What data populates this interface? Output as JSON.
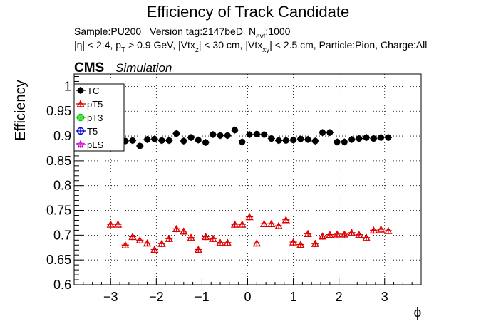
{
  "title": "Efficiency of Track Candidate",
  "header": {
    "sample_label": "Sample:PU200",
    "version_label": "Version tag:2147beD",
    "n_label": "N",
    "n_sub": "evt",
    "n_value": ":1000",
    "cuts": {
      "eta": "|η| < 2.4, p",
      "pt_sub": "T",
      "pt_cut": " > 0.9 GeV, |Vtx",
      "z_sub": "z",
      "z_cut": "| < 30 cm, |Vtx",
      "xy_sub": "xy",
      "xy_cut": "| < 2.5 cm, Particle:Pion, Charge:All"
    }
  },
  "cms_label": "CMS",
  "simulation_label": "Simulation",
  "chart_data": {
    "type": "scatter",
    "xlabel": "ϕ",
    "ylabel": "Efficiency",
    "xlim": [
      -3.8,
      3.8
    ],
    "ylim": [
      0.6,
      1.025
    ],
    "xticks": [
      -3,
      -2,
      -1,
      0,
      1,
      2,
      3
    ],
    "xtick_labels": [
      "−3",
      "−2",
      "−1",
      "0",
      "1",
      "2",
      "3"
    ],
    "yticks": [
      0.6,
      0.65,
      0.7,
      0.75,
      0.8,
      0.85,
      0.9,
      0.95,
      1.0
    ],
    "ytick_labels": [
      "0.6",
      "0.65",
      "0.7",
      "0.75",
      "0.8",
      "0.85",
      "0.9",
      "0.95",
      "1"
    ],
    "grid": true,
    "legend_position": "top-left",
    "x": [
      -3.0,
      -2.84,
      -2.68,
      -2.52,
      -2.36,
      -2.2,
      -2.04,
      -1.88,
      -1.72,
      -1.56,
      -1.4,
      -1.24,
      -1.08,
      -0.92,
      -0.76,
      -0.6,
      -0.44,
      -0.28,
      -0.12,
      0.04,
      0.2,
      0.36,
      0.52,
      0.68,
      0.84,
      1.0,
      1.16,
      1.32,
      1.48,
      1.64,
      1.8,
      1.96,
      2.12,
      2.28,
      2.44,
      2.6,
      2.76,
      2.92,
      3.08
    ],
    "series": [
      {
        "name": "TC",
        "color": "#000000",
        "marker": "filled-circle",
        "values": [
          0.895,
          0.89,
          0.89,
          0.891,
          0.88,
          0.893,
          0.894,
          0.891,
          0.891,
          0.905,
          0.89,
          0.897,
          0.892,
          0.887,
          0.903,
          0.901,
          0.901,
          0.912,
          0.888,
          0.903,
          0.904,
          0.903,
          0.895,
          0.891,
          0.891,
          0.892,
          0.894,
          0.893,
          0.89,
          0.907,
          0.907,
          0.888,
          0.888,
          0.893,
          0.895,
          0.897,
          0.895,
          0.897,
          0.897
        ]
      },
      {
        "name": "pT5",
        "color": "#dd0000",
        "marker": "open-triangle",
        "values": [
          0.722,
          0.722,
          0.68,
          0.697,
          0.69,
          0.684,
          0.671,
          0.683,
          0.693,
          0.713,
          0.708,
          0.695,
          0.671,
          0.697,
          0.693,
          0.685,
          0.685,
          0.722,
          0.722,
          0.737,
          0.684,
          0.723,
          0.723,
          0.719,
          0.731,
          0.686,
          0.681,
          0.703,
          0.683,
          0.698,
          0.701,
          0.702,
          0.702,
          0.705,
          0.701,
          0.695,
          0.71,
          0.712,
          0.709
        ]
      },
      {
        "name": "pT3",
        "color": "#00cc00",
        "marker": "open-cross",
        "values": []
      },
      {
        "name": "T5",
        "color": "#0000dd",
        "marker": "open-circle",
        "values": []
      },
      {
        "name": "pLS",
        "color": "#cc00cc",
        "marker": "open-star",
        "values": []
      }
    ]
  }
}
